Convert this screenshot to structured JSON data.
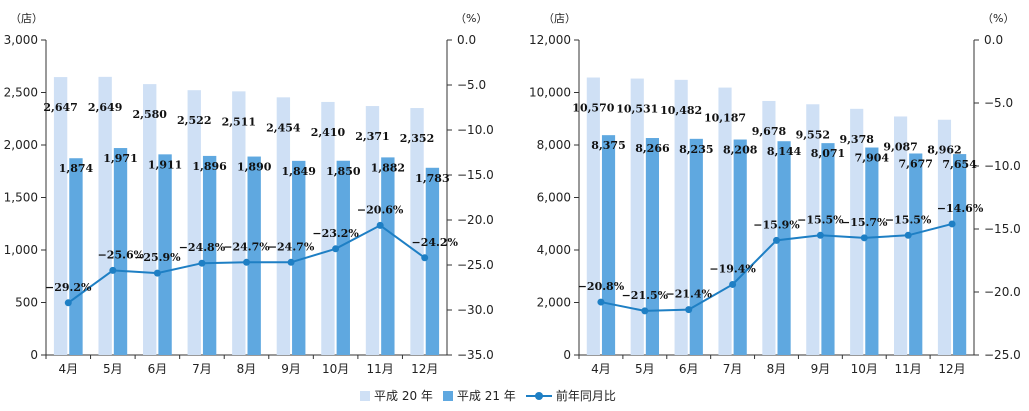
{
  "legend": {
    "series1": "平成 20 年",
    "series2": "平成 21 年",
    "series3": "前年同月比"
  },
  "colors": {
    "series1": "#cfe0f5",
    "series2": "#5fa8e0",
    "line": "#1e7fc4"
  },
  "chart_data": [
    {
      "type": "bar",
      "left_unit": "（店）",
      "right_unit": "（%）",
      "categories": [
        "4月",
        "5月",
        "6月",
        "7月",
        "8月",
        "9月",
        "10月",
        "11月",
        "12月"
      ],
      "ylim": [
        0,
        3000
      ],
      "yticks": [
        0,
        500,
        1000,
        1500,
        2000,
        2500,
        3000
      ],
      "ytick_labels": [
        "0",
        "500",
        "1,000",
        "1,500",
        "2,000",
        "2,500",
        "3,000"
      ],
      "y2lim": [
        -35,
        0
      ],
      "y2ticks": [
        0,
        -5,
        -10,
        -15,
        -20,
        -25,
        -30,
        -35
      ],
      "y2tick_labels": [
        "0.0",
        "−5.0",
        "−10.0",
        "−15.0",
        "−20.0",
        "−25.0",
        "−30.0",
        "−35.0"
      ],
      "series": [
        {
          "name": "平成 20 年",
          "values": [
            2647,
            2649,
            2580,
            2522,
            2511,
            2454,
            2410,
            2371,
            2352
          ],
          "labels": [
            "2,647",
            "2,649",
            "2,580",
            "2,522",
            "2,511",
            "2,454",
            "2,410",
            "2,371",
            "2,352"
          ]
        },
        {
          "name": "平成 21 年",
          "values": [
            1874,
            1971,
            1911,
            1896,
            1890,
            1849,
            1850,
            1882,
            1783
          ],
          "labels": [
            "1,874",
            "1,971",
            "1,911",
            "1,896",
            "1,890",
            "1,849",
            "1,850",
            "1,882",
            "1,783"
          ]
        },
        {
          "name": "前年同月比",
          "axis": "right",
          "values": [
            -29.2,
            -25.6,
            -25.9,
            -24.8,
            -24.7,
            -24.7,
            -23.2,
            -20.6,
            -24.2
          ],
          "labels": [
            "−29.2%",
            "−25.6%",
            "−25.9%",
            "−24.8%",
            "−24.7%",
            "−24.7%",
            "−23.2%",
            "−20.6%",
            "−24.2%"
          ]
        }
      ]
    },
    {
      "type": "bar",
      "left_unit": "（店）",
      "right_unit": "（%）",
      "categories": [
        "4月",
        "5月",
        "6月",
        "7月",
        "8月",
        "9月",
        "10月",
        "11月",
        "12月"
      ],
      "ylim": [
        0,
        12000
      ],
      "yticks": [
        0,
        2000,
        4000,
        6000,
        8000,
        10000,
        12000
      ],
      "ytick_labels": [
        "0",
        "2,000",
        "4,000",
        "6,000",
        "8,000",
        "10,000",
        "12,000"
      ],
      "y2lim": [
        -25,
        0
      ],
      "y2ticks": [
        0,
        -5,
        -10,
        -15,
        -20,
        -25
      ],
      "y2tick_labels": [
        "0.0",
        "−5.0",
        "−10.0",
        "−15.0",
        "−20.0",
        "−25.0"
      ],
      "series": [
        {
          "name": "平成 20 年",
          "values": [
            10570,
            10531,
            10482,
            10187,
            9678,
            9552,
            9378,
            9087,
            8962
          ],
          "labels": [
            "10,570",
            "10,531",
            "10,482",
            "10,187",
            "9,678",
            "9,552",
            "9,378",
            "9,087",
            "8,962"
          ]
        },
        {
          "name": "平成 21 年",
          "values": [
            8375,
            8266,
            8235,
            8208,
            8144,
            8071,
            7904,
            7677,
            7654
          ],
          "labels": [
            "8,375",
            "8,266",
            "8,235",
            "8,208",
            "8,144",
            "8,071",
            "7,904",
            "7,677",
            "7,654"
          ]
        },
        {
          "name": "前年同月比",
          "axis": "right",
          "values": [
            -20.8,
            -21.5,
            -21.4,
            -19.4,
            -15.9,
            -15.5,
            -15.7,
            -15.5,
            -14.6
          ],
          "labels": [
            "−20.8%",
            "−21.5%",
            "−21.4%",
            "−19.4%",
            "−15.9%",
            "−15.5%",
            "−15.7%",
            "−15.5%",
            "−14.6%"
          ]
        }
      ]
    }
  ]
}
